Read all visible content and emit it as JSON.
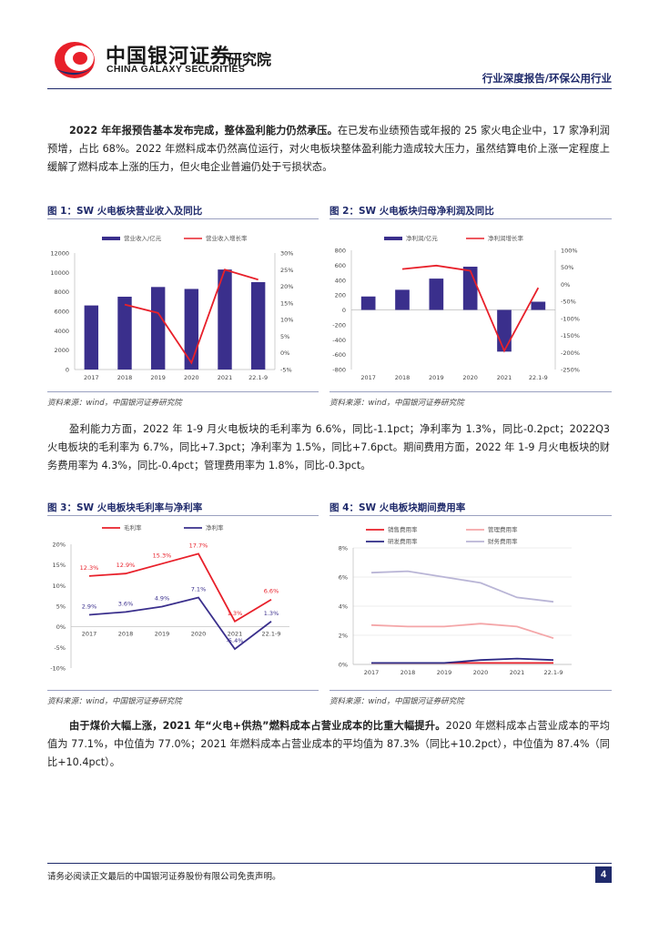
{
  "header": {
    "logo_cn": "中国银河证券",
    "logo_en": "CHINA GALAXY SECURITIES",
    "institute": "研究院",
    "report_type": "行业深度报告/环保公用行业"
  },
  "paragraphs": {
    "p1_bold": "2022 年年报预告基本发布完成，整体盈利能力仍然承压。",
    "p1_text": "在已发布业绩预告或年报的 25 家火电企业中，17 家净利润预增，占比 68%。2022 年燃料成本仍然高位运行，对火电板块整体盈利能力造成较大压力，虽然结算电价上涨一定程度上缓解了燃料成本上涨的压力，但火电企业普遍仍处于亏损状态。",
    "p2_text": "盈利能力方面，2022 年 1-9 月火电板块的毛利率为 6.6%，同比-1.1pct；净利率为 1.3%，同比-0.2pct；2022Q3 火电板块的毛利率为 6.7%，同比+7.3pct；净利率为 1.5%，同比+7.6pct。期间费用方面，2022 年 1-9 月火电板块的财务费用率为 4.3%，同比-0.4pct；管理费用率为 1.8%，同比-0.3pct。",
    "p3_bold": "由于煤价大幅上涨，2021 年“火电+供热”燃料成本占营业成本的比重大幅提升。",
    "p3_text": "2020 年燃料成本占营业成本的平均值为 77.1%，中位值为 77.0%；2021 年燃料成本占营业成本的平均值为 87.3%（同比+10.2pct），中位值为 87.4%（同比+10.4pct）。"
  },
  "figures": {
    "fig1": {
      "title": "图 1：SW 火电板块营业收入及同比",
      "source": "资料来源：wind，中国银河证券研究院",
      "chart_data": {
        "type": "bar",
        "categories": [
          "2017",
          "2018",
          "2019",
          "2020",
          "2021",
          "22.1-9"
        ],
        "series": [
          {
            "name": "营业收入/亿元",
            "type": "bar",
            "axis": "left",
            "color": "#3a2f8c",
            "values": [
              6600,
              7500,
              8500,
              8300,
              10300,
              9000
            ]
          },
          {
            "name": "营业收入增长率",
            "type": "line",
            "axis": "right",
            "color": "#e8202a",
            "values": [
              null,
              14.5,
              12.0,
              -3.0,
              25.0,
              22.0
            ]
          }
        ],
        "y_left": {
          "min": 0,
          "max": 12000,
          "ticks": [
            "0",
            "2000",
            "4000",
            "6000",
            "8000",
            "10000",
            "12000"
          ]
        },
        "y_right": {
          "min": -5,
          "max": 30,
          "ticks": [
            "-5%",
            "0%",
            "5%",
            "10%",
            "15%",
            "20%",
            "25%",
            "30%"
          ]
        },
        "legend_position": "top"
      }
    },
    "fig2": {
      "title": "图 2：SW 火电板块归母净利润及同比",
      "source": "资料来源：wind，中国银河证券研究院",
      "chart_data": {
        "type": "bar",
        "categories": [
          "2017",
          "2018",
          "2019",
          "2020",
          "2021",
          "22.1-9"
        ],
        "series": [
          {
            "name": "净利润/亿元",
            "type": "bar",
            "axis": "left",
            "color": "#3a2f8c",
            "values": [
              180,
              270,
              420,
              580,
              -560,
              110
            ]
          },
          {
            "name": "净利润增长率",
            "type": "line",
            "axis": "right",
            "color": "#e8202a",
            "values": [
              null,
              45,
              55,
              40,
              -195,
              -10
            ]
          }
        ],
        "y_left": {
          "min": -800,
          "max": 800,
          "ticks": [
            "-800",
            "-600",
            "-400",
            "-200",
            "0",
            "200",
            "400",
            "600",
            "800"
          ]
        },
        "y_right": {
          "min": -250,
          "max": 100,
          "ticks": [
            "-250%",
            "-200%",
            "-150%",
            "-100%",
            "-50%",
            "0%",
            "50%",
            "100%"
          ]
        },
        "legend_position": "top"
      }
    },
    "fig3": {
      "title": "图 3：SW 火电板块毛利率与净利率",
      "source": "资料来源：wind，中国银河证券研究院",
      "chart_data": {
        "type": "line",
        "categories": [
          "2017",
          "2018",
          "2019",
          "2020",
          "2021",
          "22.1-9"
        ],
        "series": [
          {
            "name": "毛利率",
            "color": "#e8202a",
            "values": [
              12.3,
              12.9,
              15.3,
              17.7,
              1.3,
              6.6
            ],
            "labels": [
              "12.3%",
              "12.9%",
              "15.3%",
              "17.7%",
              "1.3%",
              "6.6%"
            ]
          },
          {
            "name": "净利率",
            "color": "#3a2f8c",
            "values": [
              2.9,
              3.6,
              4.9,
              7.1,
              -5.4,
              1.3
            ],
            "labels": [
              "2.9%",
              "3.6%",
              "4.9%",
              "7.1%",
              "-5.4%",
              "1.3%"
            ]
          }
        ],
        "y": {
          "min": -10,
          "max": 20,
          "ticks": [
            "-10%",
            "-5%",
            "0%",
            "5%",
            "10%",
            "15%",
            "20%"
          ]
        },
        "legend_position": "top"
      }
    },
    "fig4": {
      "title": "图 4：SW 火电板块期间费用率",
      "source": "资料来源：wind，中国银河证券研究院",
      "chart_data": {
        "type": "line",
        "categories": [
          "2017",
          "2018",
          "2019",
          "2020",
          "2021",
          "22.1-9"
        ],
        "series": [
          {
            "name": "销售费用率",
            "color": "#e8202a",
            "values": [
              0.1,
              0.1,
              0.1,
              0.1,
              0.1,
              0.1
            ]
          },
          {
            "name": "管理费用率",
            "color": "#f4a6a8",
            "values": [
              2.7,
              2.6,
              2.6,
              2.8,
              2.6,
              1.8
            ]
          },
          {
            "name": "研发费用率",
            "color": "#2d2a85",
            "values": [
              0.1,
              0.1,
              0.1,
              0.3,
              0.4,
              0.3
            ]
          },
          {
            "name": "财务费用率",
            "color": "#b9b5d6",
            "values": [
              6.3,
              6.4,
              6.0,
              5.6,
              4.6,
              4.3
            ]
          }
        ],
        "y": {
          "min": 0,
          "max": 8,
          "ticks": [
            "0%",
            "2%",
            "4%",
            "6%",
            "8%"
          ]
        },
        "legend_position": "top"
      }
    }
  },
  "footer": {
    "disclaimer": "请务必阅读正文最后的中国银河证券股份有限公司免责声明。",
    "page_number": "4"
  }
}
